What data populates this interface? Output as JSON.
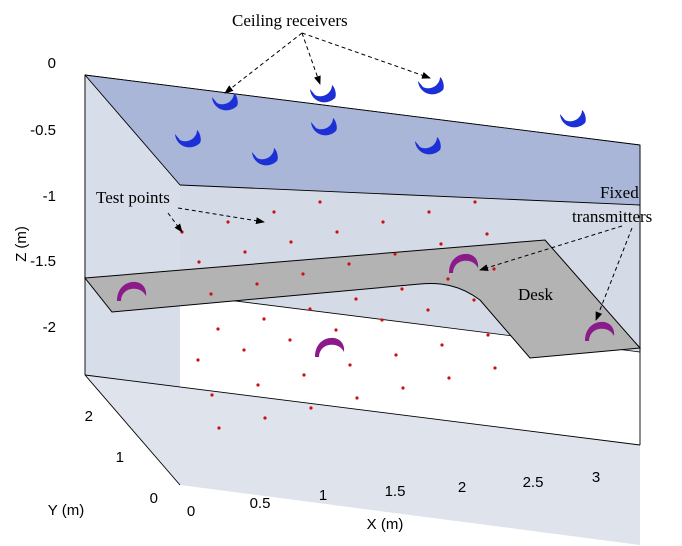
{
  "annotations": {
    "ceiling_receivers": "Ceiling receivers",
    "test_points": "Test points",
    "fixed_transmitters_line1": "Fixed",
    "fixed_transmitters_line2": "transmitters",
    "desk": "Desk"
  },
  "axes": {
    "x_label": "X (m)",
    "y_label": "Y (m)",
    "z_label": "Z (m)",
    "x_ticks": [
      "0",
      "0.5",
      "1",
      "1.5",
      "2",
      "2.5",
      "3"
    ],
    "y_ticks": [
      "0",
      "1",
      "2"
    ],
    "z_ticks": [
      "0",
      "-0.5",
      "-1",
      "-1.5",
      "-2"
    ]
  },
  "colors": {
    "ceiling": "#a9b6d8",
    "walls": "#d4dbe7",
    "floor": "#dde2ec",
    "desk": "#b3b3b3",
    "receiver": "#1d2fd6",
    "transmitter": "#8b1a8b",
    "test_point": "#cc1111",
    "edge": "#000000"
  },
  "icons": {
    "receiver": "crescent-receiver-icon",
    "transmitter": "crescent-transmitter-icon",
    "test_point": "dot"
  }
}
